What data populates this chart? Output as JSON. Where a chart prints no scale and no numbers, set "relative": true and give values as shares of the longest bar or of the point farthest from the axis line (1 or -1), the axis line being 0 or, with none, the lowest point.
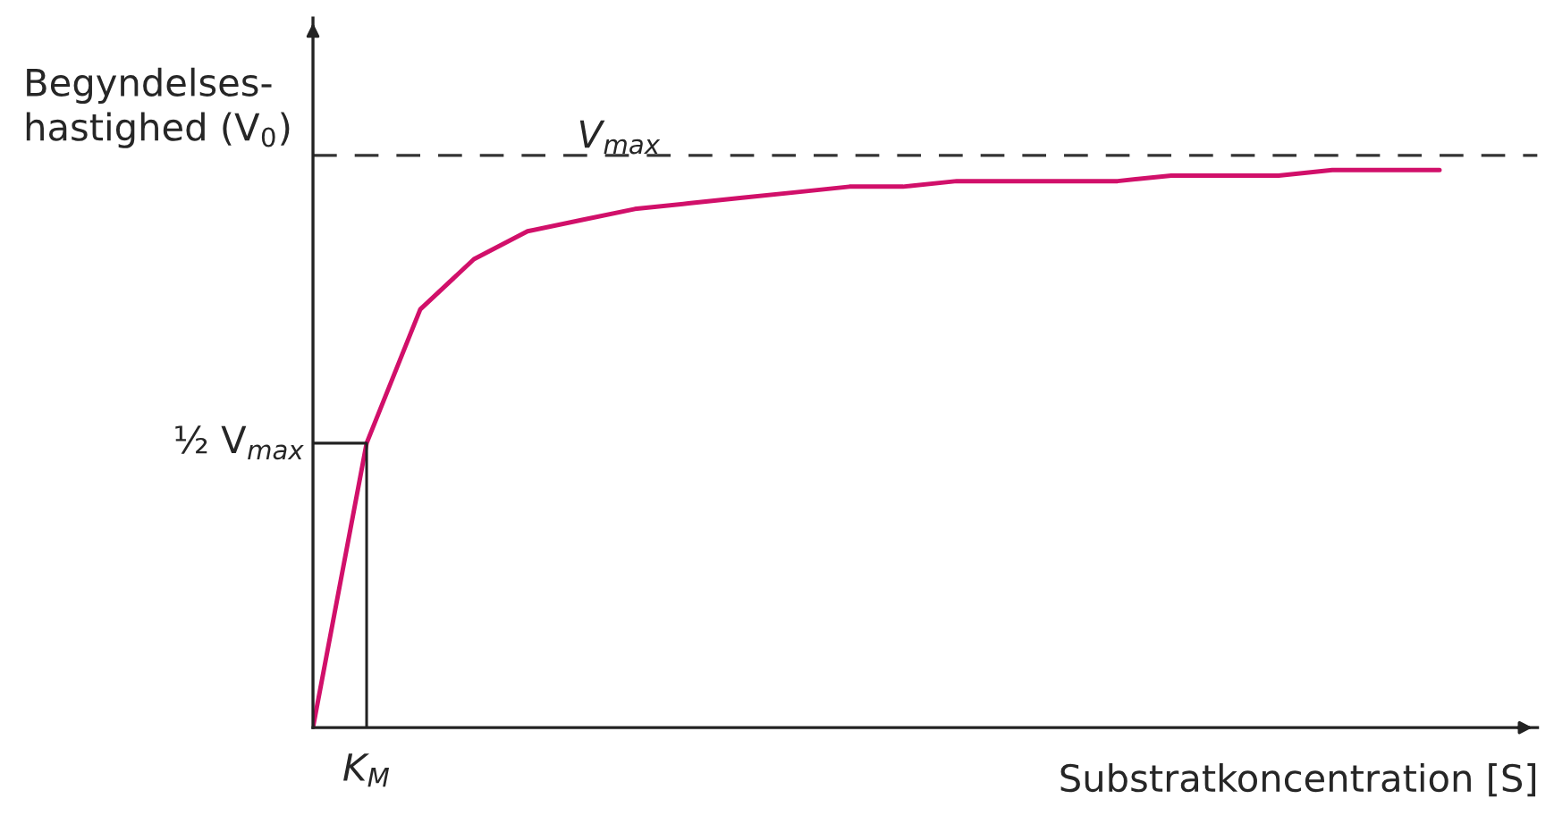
{
  "chart_data": {
    "type": "line",
    "relative": true,
    "xlabel": "Substratkoncentration [S]",
    "ylabel": "Begyndelses-\nhastighed (V$_{0}$)",
    "categories": [
      null,
      null,
      null,
      null,
      null,
      null,
      null,
      null,
      null,
      null,
      null,
      null,
      null,
      null,
      null,
      null,
      null,
      null,
      null,
      null,
      null,
      null
    ],
    "series": [
      {
        "color": "#d1106a",
        "values": [
          0,
          0.51,
          0.75,
          0.84,
          0.89,
          0.91,
          0.93,
          0.94,
          0.95,
          0.96,
          0.97,
          0.97,
          0.98,
          0.98,
          0.98,
          0.98,
          0.99,
          0.99,
          0.99,
          1.0,
          1.0,
          1.0
        ]
      }
    ],
    "ref_lines": [
      {
        "axis": "y",
        "value": 1.026,
        "label": "V$_{max}$",
        "line_style": "dashed",
        "color": "#333333"
      },
      {
        "axis": "y",
        "value": 0.51,
        "label": "½ V$_{max}$",
        "line_style": "solid",
        "color": "#222222"
      }
    ],
    "annotations": [
      "K$_{M}$"
    ],
    "legend": false,
    "marker": "none",
    "line_style": "solid"
  }
}
